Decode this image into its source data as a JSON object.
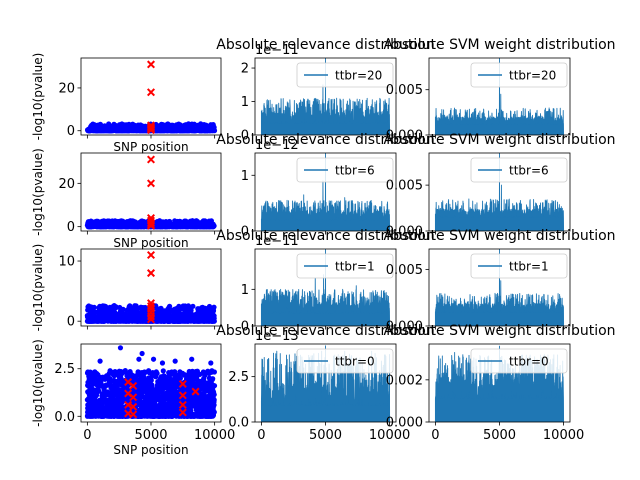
{
  "chart_data": {
    "type": "multi-panel",
    "layout": "4 rows x 3 columns",
    "rows": [
      {
        "ttbr": "20",
        "manhattan": {
          "type": "scatter",
          "ylabel": "-log10(pvalue)",
          "xlabel": "SNP position",
          "ylim": [
            -2,
            34
          ],
          "yticks": [
            0,
            20
          ],
          "xlim": [
            -500,
            10500
          ],
          "background": {
            "color": "#0000ff",
            "max_y": 3.2
          },
          "red_points": [
            [
              5000,
              31
            ],
            [
              5000,
              18
            ],
            [
              5000,
              2.5
            ],
            [
              5000,
              1.8
            ],
            [
              5000,
              1.2
            ],
            [
              5000,
              0.7
            ],
            [
              5000,
              0.3
            ]
          ]
        },
        "relevance": {
          "type": "line",
          "title": "Absolute relevance distribution",
          "legend": "ttbr=20",
          "exponent": "1e−11",
          "ylim": [
            0,
            2.3
          ],
          "yticks": [
            0,
            1,
            2
          ],
          "xlim": [
            -500,
            10500
          ],
          "noise": {
            "base": 0.35,
            "amp": 0.75,
            "peak_frac": 0.6
          },
          "spikes": [
            [
              5000,
              2.3
            ],
            [
              4800,
              1.5
            ],
            [
              2950,
              0.95
            ],
            [
              1350,
              0.95
            ],
            [
              3650,
              1.0
            ],
            [
              6700,
              0.9
            ]
          ]
        },
        "svm": {
          "type": "line",
          "title": "Absolute SVM weight distribution",
          "legend": "ttbr=20",
          "ylim": [
            0,
            0.0085
          ],
          "yticks": [
            0,
            0.005
          ],
          "ytick_labels": [
            "0.000",
            "0.005"
          ],
          "xlim": [
            -500,
            10500
          ],
          "noise": {
            "base": 0.0012,
            "amp": 0.0018,
            "peak_frac": 0.3
          },
          "spikes": [
            [
              5000,
              0.0085
            ],
            [
              5100,
              0.0045
            ]
          ]
        }
      },
      {
        "ttbr": "6",
        "manhattan": {
          "type": "scatter",
          "ylabel": "-log10(pvalue)",
          "xlabel": "SNP position",
          "ylim": [
            -2,
            34
          ],
          "yticks": [
            0,
            20
          ],
          "xlim": [
            -500,
            10500
          ],
          "background": {
            "color": "#0000ff",
            "max_y": 2.8
          },
          "red_points": [
            [
              5000,
              31
            ],
            [
              5000,
              20
            ],
            [
              5000,
              4
            ],
            [
              5000,
              2.8
            ],
            [
              5000,
              1.8
            ],
            [
              5000,
              1
            ],
            [
              5000,
              0.4
            ]
          ]
        },
        "relevance": {
          "type": "line",
          "title": "Absolute relevance distribution",
          "legend": "ttbr=6",
          "exponent": "1e−12",
          "ylim": [
            0,
            1.4
          ],
          "yticks": [
            0,
            1
          ],
          "xlim": [
            -500,
            10500
          ],
          "noise": {
            "base": 0.2,
            "amp": 0.35,
            "peak_frac": 0.6
          },
          "spikes": [
            [
              5000,
              1.4
            ],
            [
              4800,
              0.9
            ],
            [
              3300,
              0.65
            ],
            [
              2000,
              0.55
            ],
            [
              6500,
              0.6
            ],
            [
              8100,
              0.5
            ]
          ]
        },
        "svm": {
          "type": "line",
          "title": "Absolute SVM weight distribution",
          "legend": "ttbr=6",
          "ylim": [
            0,
            0.0085
          ],
          "yticks": [
            0,
            0.005
          ],
          "ytick_labels": [
            "0.000",
            "0.005"
          ],
          "xlim": [
            -500,
            10500
          ],
          "noise": {
            "base": 0.0015,
            "amp": 0.002,
            "peak_frac": 0.3
          },
          "spikes": [
            [
              5000,
              0.0085
            ],
            [
              5150,
              0.005
            ]
          ]
        }
      },
      {
        "ttbr": "1",
        "manhattan": {
          "type": "scatter",
          "ylabel": "-log10(pvalue)",
          "xlabel": "",
          "ylim": [
            -0.8,
            12
          ],
          "yticks": [
            0,
            10
          ],
          "xlim": [
            -500,
            10500
          ],
          "background": {
            "color": "#0000ff",
            "max_y": 2.6
          },
          "red_points": [
            [
              5000,
              11
            ],
            [
              5000,
              8
            ],
            [
              5000,
              3
            ],
            [
              5000,
              2.5
            ],
            [
              5000,
              2
            ],
            [
              5000,
              1.4
            ],
            [
              5000,
              0.8
            ],
            [
              5000,
              0.3
            ]
          ]
        },
        "relevance": {
          "type": "line",
          "title": "Absolute relevance distribution",
          "legend": "ttbr=1",
          "exponent": "1e−11",
          "ylim": [
            0,
            2.1
          ],
          "yticks": [
            0,
            1
          ],
          "xlim": [
            -500,
            10500
          ],
          "noise": {
            "base": 0.35,
            "amp": 0.65,
            "peak_frac": 0.6
          },
          "spikes": [
            [
              5000,
              2.1
            ],
            [
              4850,
              1.4
            ],
            [
              4200,
              1.3
            ],
            [
              1500,
              1.0
            ],
            [
              7400,
              1.1
            ],
            [
              2700,
              0.95
            ]
          ]
        },
        "svm": {
          "type": "line",
          "title": "Absolute SVM weight distribution",
          "legend": "ttbr=1",
          "ylim": [
            0,
            0.0068
          ],
          "yticks": [
            0,
            0.005
          ],
          "ytick_labels": [
            "0.000",
            "0.005"
          ],
          "xlim": [
            -500,
            10500
          ],
          "noise": {
            "base": 0.0012,
            "amp": 0.0017,
            "peak_frac": 0.3
          },
          "spikes": [
            [
              5000,
              0.0068
            ],
            [
              5100,
              0.004
            ]
          ]
        }
      },
      {
        "ttbr": "0",
        "manhattan": {
          "type": "scatter",
          "ylabel": "-log10(pvalue)",
          "xlabel": "SNP position",
          "ylim": [
            -0.3,
            3.8
          ],
          "yticks": [
            0,
            2.5
          ],
          "ytick_labels": [
            "0.0",
            "2.5"
          ],
          "xticks": [
            0,
            5000,
            10000
          ],
          "xlim": [
            -500,
            10500
          ],
          "background": {
            "color": "#0000ff",
            "max_y": 2.4
          },
          "outliers": [
            [
              2600,
              3.6
            ],
            [
              4300,
              3.3
            ],
            [
              4050,
              3.0
            ],
            [
              5200,
              3.0
            ],
            [
              8200,
              3.0
            ],
            [
              1000,
              2.9
            ],
            [
              6900,
              2.9
            ],
            [
              9700,
              2.8
            ],
            [
              5900,
              2.8
            ]
          ],
          "red_points": [
            [
              3200,
              1.8
            ],
            [
              3200,
              1.2
            ],
            [
              3200,
              0.6
            ],
            [
              3200,
              0.15
            ],
            [
              3600,
              1.6
            ],
            [
              3600,
              1.0
            ],
            [
              3600,
              0.5
            ],
            [
              3600,
              0.1
            ],
            [
              7500,
              1.7
            ],
            [
              7500,
              1.1
            ],
            [
              7500,
              0.6
            ],
            [
              7500,
              0.2
            ],
            [
              8500,
              1.3
            ]
          ]
        },
        "relevance": {
          "type": "line",
          "title": "Absolute relevance distribution",
          "legend": "ttbr=0",
          "exponent": "1e−13",
          "ylim": [
            0,
            4.3
          ],
          "yticks": [
            0,
            2.5
          ],
          "ytick_labels": [
            "0.0",
            "2.5"
          ],
          "xticks": [
            0,
            5000,
            10000
          ],
          "xlim": [
            -500,
            10500
          ],
          "noise": {
            "base": 0.9,
            "amp": 2.9,
            "peak_frac": 0.5
          },
          "spikes": [
            [
              5000,
              4.2
            ],
            [
              1200,
              3.9
            ],
            [
              2800,
              3.9
            ],
            [
              4700,
              3.9
            ],
            [
              6500,
              3.9
            ],
            [
              8600,
              3.9
            ],
            [
              9600,
              3.7
            ]
          ]
        },
        "svm": {
          "type": "line",
          "title": "Absolute SVM weight distribution",
          "legend": "ttbr=0",
          "ylim": [
            0,
            0.0037
          ],
          "yticks": [
            0,
            0.002
          ],
          "ytick_labels": [
            "0.000",
            "0.002"
          ],
          "xticks": [
            0,
            5000,
            10000
          ],
          "xlim": [
            -500,
            10500
          ],
          "noise": {
            "base": 0.0011,
            "amp": 0.0021,
            "peak_frac": 0.5
          },
          "spikes": [
            [
              5000,
              0.0036
            ],
            [
              1500,
              0.0033
            ],
            [
              8500,
              0.0032
            ]
          ]
        }
      }
    ],
    "colors": {
      "line": "#1f77b4",
      "scatter": "#0000ff",
      "marker": "#ff0000"
    }
  }
}
